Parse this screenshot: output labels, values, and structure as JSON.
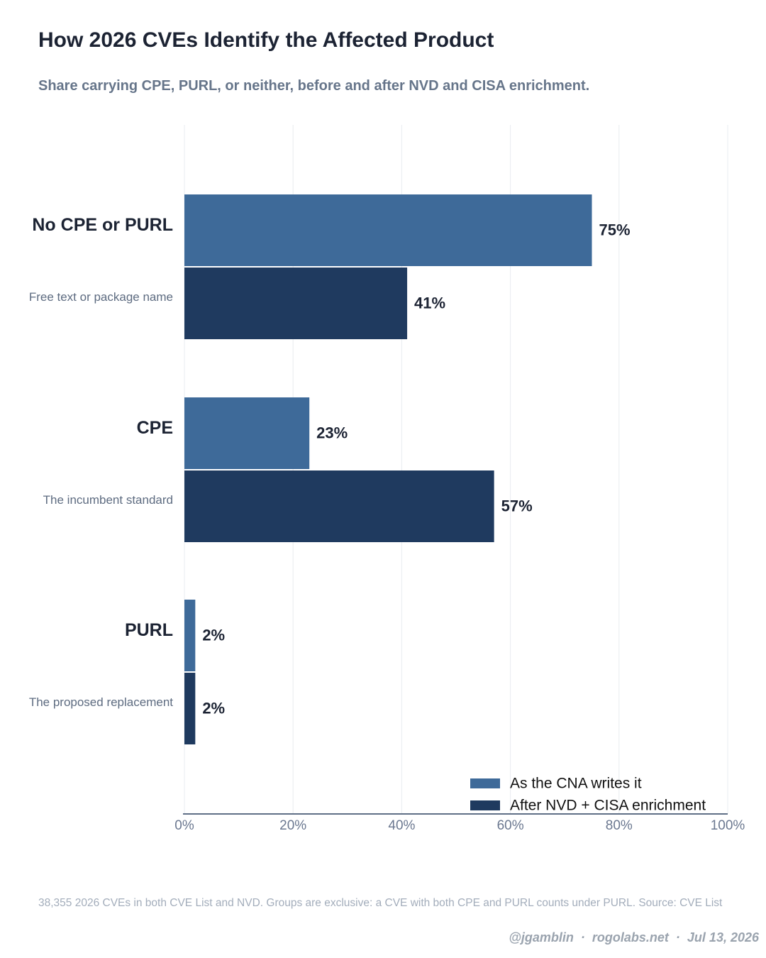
{
  "chart_data": {
    "type": "bar",
    "orientation": "horizontal",
    "title": "How 2026 CVEs Identify the Affected Product",
    "subtitle": "Share carrying CPE, PURL, or neither, before and after NVD and CISA enrichment.",
    "categories": [
      {
        "label": "No CPE or PURL",
        "sublabel": "Free text or package name"
      },
      {
        "label": "CPE",
        "sublabel": "The incumbent standard"
      },
      {
        "label": "PURL",
        "sublabel": "The proposed replacement"
      }
    ],
    "series": [
      {
        "name": "As the CNA writes it",
        "color": "#3e6a99",
        "values": [
          75,
          23,
          2
        ]
      },
      {
        "name": "After NVD + CISA enrichment",
        "color": "#1f3a5f",
        "values": [
          41,
          57,
          2
        ]
      }
    ],
    "value_labels": [
      [
        "75%",
        "23%",
        "2%"
      ],
      [
        "41%",
        "57%",
        "2%"
      ]
    ],
    "xlim": [
      0,
      100
    ],
    "xticks": [
      0,
      20,
      40,
      60,
      80,
      100
    ],
    "xtick_labels": [
      "0%",
      "20%",
      "40%",
      "60%",
      "80%",
      "100%"
    ],
    "grid": true,
    "legend_position": "bottom-right"
  },
  "footnote": "38,355 2026 CVEs in both CVE List and NVD. Groups are exclusive: a CVE with both CPE and PURL counts under PURL. Source: CVE List",
  "credit": {
    "handle": "@jgamblin",
    "site": "rogolabs.net",
    "date": "Jul 13, 2026",
    "separator": "·"
  }
}
